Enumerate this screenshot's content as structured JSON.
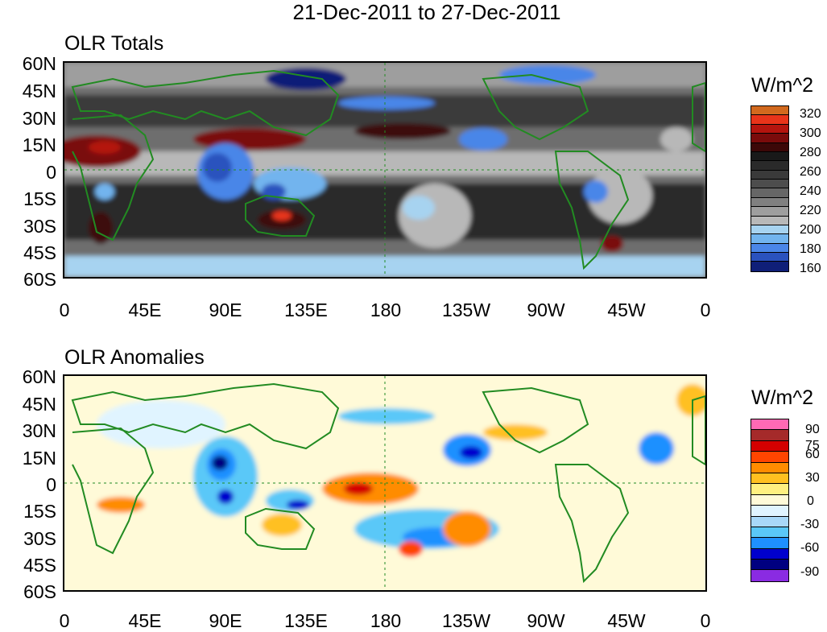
{
  "title": "21-Dec-2011 to 27-Dec-2011",
  "panels": [
    {
      "id": "totals",
      "title": "OLR Totals",
      "units": "W/m^2",
      "y_ticks": [
        "60N",
        "45N",
        "30N",
        "15N",
        "0",
        "15S",
        "30S",
        "45S",
        "60S"
      ],
      "x_ticks": [
        "0",
        "45E",
        "90E",
        "135E",
        "180",
        "135W",
        "90W",
        "45W",
        "0"
      ],
      "colorbar": {
        "labels": [
          "320",
          "300",
          "280",
          "260",
          "240",
          "220",
          "200",
          "180",
          "160"
        ],
        "colors": [
          "#d2691e",
          "#e8341a",
          "#b4140e",
          "#7a0b0b",
          "#3c0808",
          "#191919",
          "#2a2a2a",
          "#3a3a3a",
          "#4d4d4d",
          "#666666",
          "#808080",
          "#9e9e9e",
          "#b8b8b8",
          "#a7d3f0",
          "#72b4ee",
          "#4a86e8",
          "#2a52be",
          "#0f1f78"
        ]
      }
    },
    {
      "id": "anomalies",
      "title": "OLR Anomalies",
      "units": "W/m^2",
      "y_ticks": [
        "60N",
        "45N",
        "30N",
        "15N",
        "0",
        "15S",
        "30S",
        "45S",
        "60S"
      ],
      "x_ticks": [
        "0",
        "45E",
        "90E",
        "135E",
        "180",
        "135W",
        "90W",
        "45W",
        "0"
      ],
      "colorbar": {
        "labels": [
          "90",
          "75",
          "60",
          "30",
          "0",
          "-30",
          "-60",
          "-90"
        ],
        "colors": [
          "#ff69b4",
          "#a52a2a",
          "#d40000",
          "#ff4500",
          "#ff8c00",
          "#ffc020",
          "#fff080",
          "#fffad8",
          "#e0f4ff",
          "#a8d8f8",
          "#5ac8f8",
          "#1e90ff",
          "#0000cd",
          "#000080",
          "#8a2be2"
        ]
      }
    }
  ]
}
